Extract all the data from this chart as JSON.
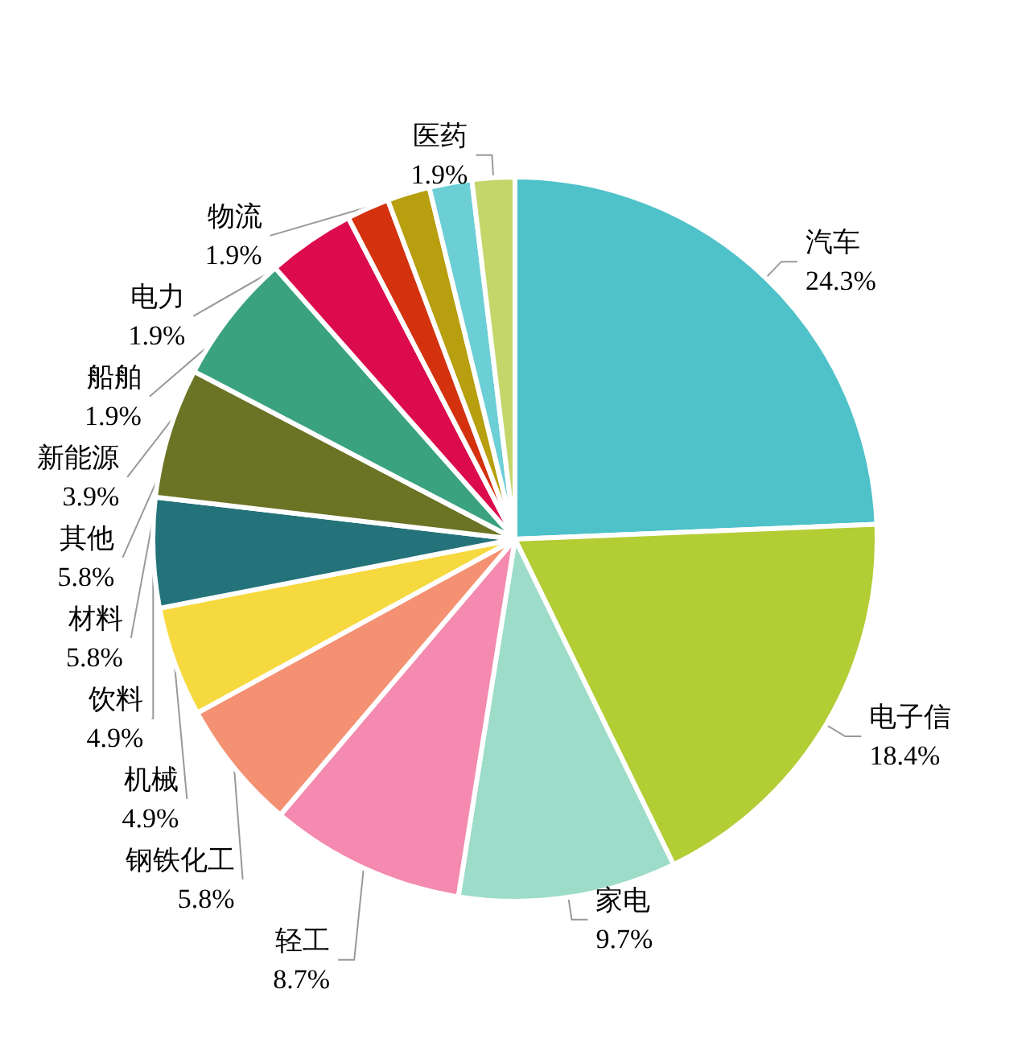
{
  "chart_data": {
    "type": "pie",
    "categories": [
      "汽车",
      "电子信",
      "家电",
      "轻工",
      "钢铁化工",
      "机械",
      "饮料",
      "材料",
      "其他",
      "新能源",
      "船舶",
      "电力",
      "物流",
      "医药"
    ],
    "values": [
      24.3,
      18.4,
      9.7,
      8.7,
      5.8,
      4.9,
      4.9,
      5.8,
      5.8,
      3.9,
      1.9,
      1.9,
      1.9,
      1.9
    ],
    "colors": [
      "#4fc1c9",
      "#b3cd35",
      "#9ddcc8",
      "#f48aaf",
      "#f59173",
      "#f6d93e",
      "#24737a",
      "#6b7425",
      "#3aa27f",
      "#dc0b4d",
      "#d4320f",
      "#b79f0f",
      "#6ccfd6",
      "#c4d66a"
    ],
    "value_labels": [
      "24.3%",
      "18.4%",
      "9.7%",
      "8.7%",
      "5.8%",
      "4.9%",
      "4.9%",
      "5.8%",
      "5.8%",
      "3.9%",
      "1.9%",
      "1.9%",
      "1.9%",
      "1.9%"
    ],
    "legend": false
  }
}
